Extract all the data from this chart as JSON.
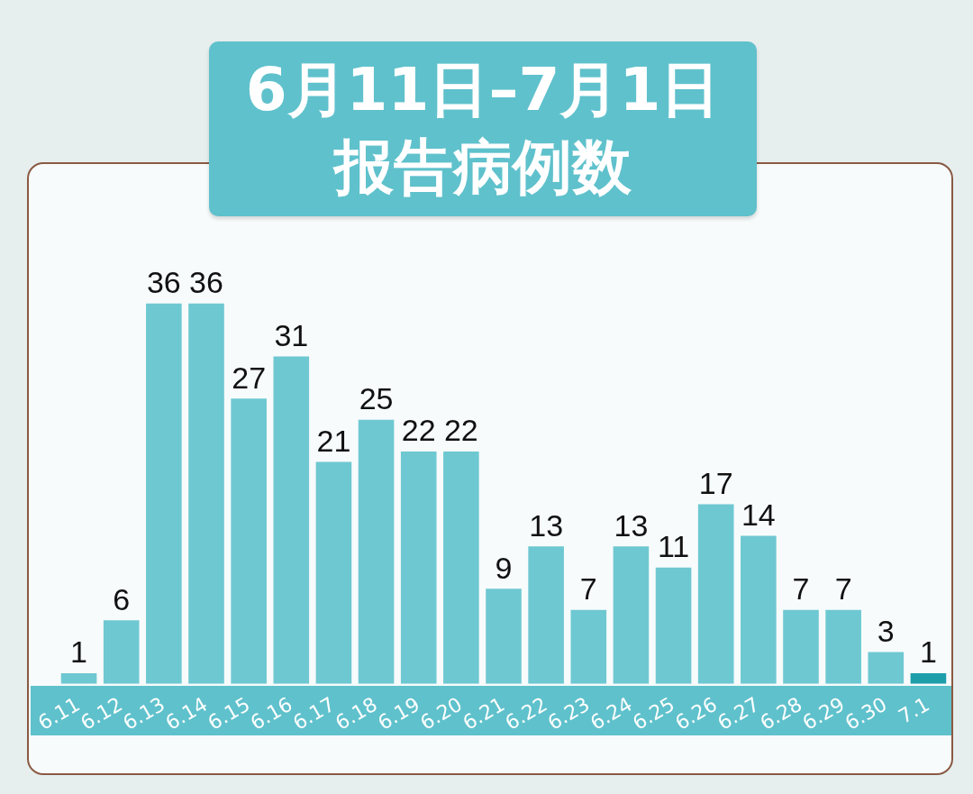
{
  "chart_data": {
    "type": "bar",
    "title": "6月11日–7月1日报告病例数",
    "categories": [
      "6.11",
      "6.12",
      "6.13",
      "6.14",
      "6.15",
      "6.16",
      "6.17",
      "6.18",
      "6.19",
      "6.20",
      "6.21",
      "6.22",
      "6.23",
      "6.24",
      "6.25",
      "6.26",
      "6.27",
      "6.28",
      "6.29",
      "6.30",
      "7.1"
    ],
    "values": [
      1,
      6,
      36,
      36,
      27,
      31,
      21,
      25,
      22,
      22,
      9,
      13,
      7,
      13,
      11,
      17,
      14,
      7,
      7,
      3,
      1
    ],
    "colors": [
      "#6ec8d2",
      "#6ec8d2",
      "#6ec8d2",
      "#6ec8d2",
      "#6ec8d2",
      "#6ec8d2",
      "#6ec8d2",
      "#6ec8d2",
      "#6ec8d2",
      "#6ec8d2",
      "#6ec8d2",
      "#6ec8d2",
      "#6ec8d2",
      "#6ec8d2",
      "#6ec8d2",
      "#6ec8d2",
      "#6ec8d2",
      "#6ec8d2",
      "#6ec8d2",
      "#6ec8d2",
      "#1e9eab"
    ],
    "data_labels": true,
    "grid": false,
    "legend": false
  }
}
